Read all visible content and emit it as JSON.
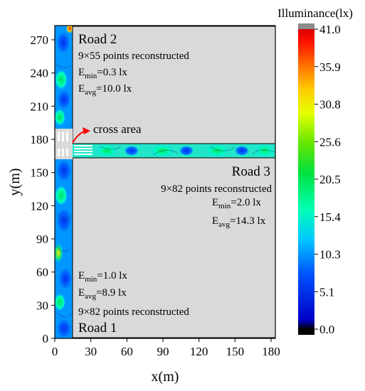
{
  "chart_data": {
    "type": "heatmap",
    "xlabel": "x(m)",
    "ylabel": "y(m)",
    "xlim": [
      0,
      195
    ],
    "ylim": [
      0,
      283
    ],
    "xticks": [
      "0",
      "30",
      "60",
      "90",
      "120",
      "150",
      "180"
    ],
    "yticks": [
      "0",
      "30",
      "60",
      "90",
      "120",
      "150",
      "180",
      "210",
      "240",
      "270"
    ],
    "colorbar": {
      "title": "Illuminance(lx)",
      "range": [
        0.0,
        41.0
      ],
      "ticks": [
        "41.0",
        "35.9",
        "30.8",
        "25.6",
        "20.5",
        "15.4",
        "10.3",
        "5.1",
        "0.0"
      ],
      "colors": [
        "#000000",
        "#0000c8",
        "#0050ff",
        "#00c8ff",
        "#00ff96",
        "#00e000",
        "#c8ff00",
        "#ffff00",
        "#ffaa00",
        "#ff3000",
        "#e00000"
      ]
    },
    "roads": [
      {
        "name": "Road 1",
        "x_range": [
          0,
          15
        ],
        "y_range": [
          0,
          157
        ],
        "points": "9×82 points reconstructed",
        "emin_lx": 1.0,
        "eavg_lx": 8.9
      },
      {
        "name": "Road 2",
        "x_range": [
          0,
          15
        ],
        "y_range": [
          177,
          283
        ],
        "points": "9×55 points reconstructed",
        "emin_lx": 0.3,
        "eavg_lx": 10.0
      },
      {
        "name": "Road 3",
        "x_range": [
          15,
          195
        ],
        "y_range": [
          163,
          177
        ],
        "points": "9×82 points reconstructed",
        "emin_lx": 2.0,
        "eavg_lx": 14.3
      }
    ],
    "cross_area": {
      "x_range": [
        0,
        15
      ],
      "y_range": [
        157,
        177
      ]
    }
  },
  "labels": {
    "road2_name": "Road 2",
    "road2_points": "9×55 points reconstructed",
    "road2_emin_pre": "E",
    "road2_emin_sub": "min",
    "road2_emin_val": "=0.3 lx",
    "road2_eavg_pre": "E",
    "road2_eavg_sub": "avg",
    "road2_eavg_val": "=10.0 lx",
    "road3_name": "Road 3",
    "road3_points": "9×82 points reconstructed",
    "road3_emin_pre": "E",
    "road3_emin_sub": "min",
    "road3_emin_val": "=2.0 lx",
    "road3_eavg_pre": "E",
    "road3_eavg_sub": "avg",
    "road3_eavg_val": "=14.3 lx",
    "road1_name": "Road 1",
    "road1_points": "9×82 points reconstructed",
    "road1_emin_pre": "E",
    "road1_emin_sub": "min",
    "road1_emin_val": "=1.0 lx",
    "road1_eavg_pre": "E",
    "road1_eavg_sub": "avg",
    "road1_eavg_val": "=8.9 lx",
    "cross_area": "cross area"
  },
  "colors": {
    "block_fill": "#d9d9d9",
    "crosswalk": "#ffffff",
    "arrow": "#ff0000"
  }
}
